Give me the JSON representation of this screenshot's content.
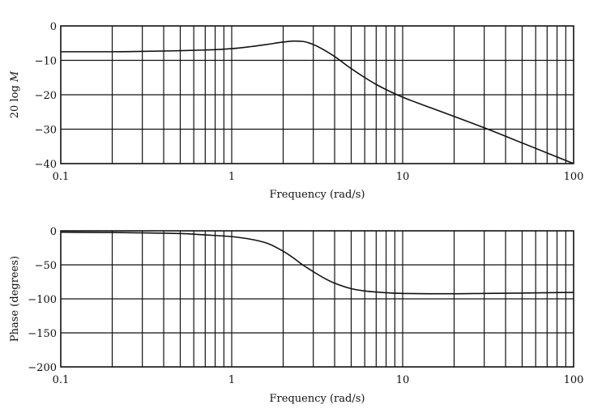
{
  "chart_data": [
    {
      "type": "line",
      "title": "",
      "xlabel": "Frequency (rad/s)",
      "ylabel": "20 log M",
      "xscale": "log",
      "xlim": [
        0.1,
        100
      ],
      "ylim": [
        -40,
        0
      ],
      "grid": true,
      "xticks": [
        0.1,
        1,
        10,
        100
      ],
      "xtick_labels": [
        "0.1",
        "1",
        "10",
        "100"
      ],
      "yticks": [
        0,
        -10,
        -20,
        -30,
        -40
      ],
      "ytick_labels": [
        "0",
        "−10",
        "−20",
        "−30",
        "−40"
      ],
      "series": [
        {
          "x": [
            0.1,
            0.2,
            0.3,
            0.5,
            0.7,
            1.0,
            1.3,
            1.6,
            2.0,
            2.3,
            2.6,
            3.0,
            3.5,
            4.0,
            5.0,
            6.0,
            7.0,
            8.0,
            10,
            15,
            20,
            30,
            50,
            70,
            100
          ],
          "values": [
            -7.5,
            -7.5,
            -7.4,
            -7.2,
            -7.0,
            -6.6,
            -6.0,
            -5.4,
            -4.7,
            -4.4,
            -4.5,
            -5.4,
            -7.1,
            -8.9,
            -12.4,
            -15.0,
            -17.0,
            -18.5,
            -20.7,
            -24.0,
            -26.3,
            -29.6,
            -34.0,
            -36.9,
            -40.0
          ]
        }
      ]
    },
    {
      "type": "line",
      "title": "",
      "xlabel": "Frequency (rad/s)",
      "ylabel": "Phase (degrees)",
      "xscale": "log",
      "xlim": [
        0.1,
        100
      ],
      "ylim": [
        -200,
        0
      ],
      "grid": true,
      "xticks": [
        0.1,
        1,
        10,
        100
      ],
      "xtick_labels": [
        "0.1",
        "1",
        "10",
        "100"
      ],
      "yticks": [
        0,
        -50,
        -100,
        -150,
        -200
      ],
      "ytick_labels": [
        "0",
        "−50",
        "−100",
        "−150",
        "−200"
      ],
      "series": [
        {
          "x": [
            0.1,
            0.2,
            0.3,
            0.5,
            0.7,
            1.0,
            1.3,
            1.6,
            2.0,
            2.3,
            2.6,
            3.0,
            3.5,
            4.0,
            5.0,
            6.0,
            7.0,
            8.0,
            10,
            15,
            20,
            30,
            50,
            70,
            100
          ],
          "values": [
            -2,
            -2.5,
            -3,
            -4,
            -6,
            -8.5,
            -12.5,
            -18,
            -30,
            -40,
            -50,
            -60,
            -70,
            -77,
            -85,
            -88.5,
            -90,
            -91,
            -92,
            -92.5,
            -92.5,
            -92,
            -91.5,
            -91,
            -90.5
          ]
        }
      ]
    }
  ]
}
